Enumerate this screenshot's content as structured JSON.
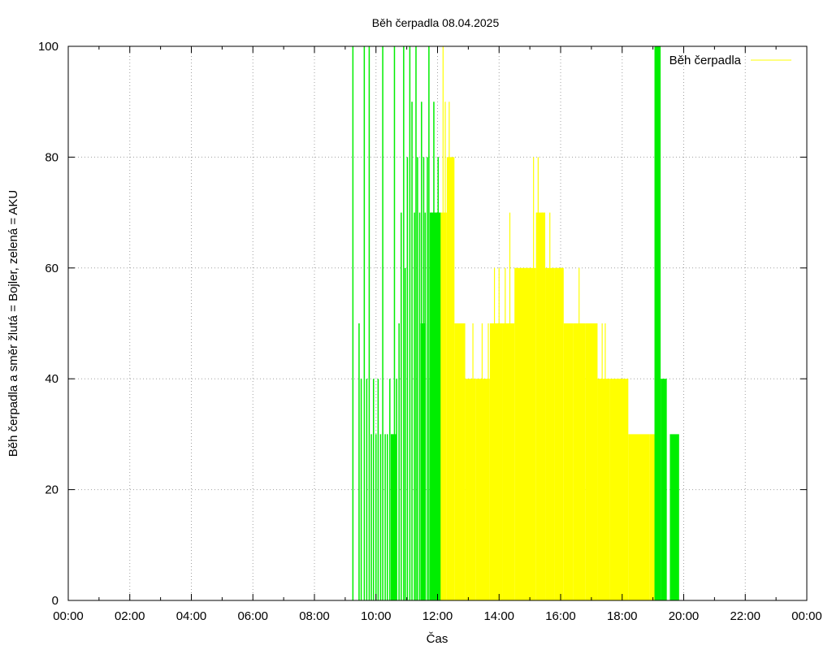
{
  "chart_data": {
    "type": "area",
    "title": "Běh čerpadla 08.04.2025",
    "xlabel": "Čas",
    "ylabel": "Běh čerpadla a směr žlutá = Bojler, zelená = AKU",
    "xlim": [
      0,
      24
    ],
    "ylim": [
      0,
      100
    ],
    "x_ticks": [
      0,
      2,
      4,
      6,
      8,
      10,
      12,
      14,
      16,
      18,
      20,
      22,
      24
    ],
    "x_tick_labels": [
      "00:00",
      "02:00",
      "04:00",
      "06:00",
      "08:00",
      "10:00",
      "12:00",
      "14:00",
      "16:00",
      "18:00",
      "20:00",
      "22:00",
      "00:00"
    ],
    "y_ticks": [
      0,
      20,
      40,
      60,
      80,
      100
    ],
    "y_tick_labels": [
      "0",
      "20",
      "40",
      "60",
      "80",
      "100"
    ],
    "grid": true,
    "legend_position": "top-right",
    "legend": [
      {
        "label": "Běh čerpadla",
        "color": "#ffff00"
      }
    ],
    "series": [
      {
        "name": "Běh čerpadla",
        "color": "#00ee00",
        "style": "impulses",
        "x": [
          9.25,
          9.45,
          9.52,
          9.62,
          9.7,
          9.78,
          9.85,
          9.92,
          10.0,
          10.07,
          10.15,
          10.22,
          10.3,
          10.37,
          10.45,
          10.52,
          10.6,
          10.67,
          10.75,
          10.82,
          10.9,
          10.95,
          11.02,
          11.1,
          11.17,
          11.25,
          11.3,
          11.35,
          11.42,
          11.48,
          11.55,
          11.6,
          11.67,
          11.72,
          11.8,
          11.88,
          11.95,
          12.02
        ],
        "y": [
          100,
          50,
          40,
          100,
          40,
          100,
          30,
          40,
          30,
          40,
          30,
          100,
          30,
          30,
          40,
          30,
          100,
          40,
          50,
          70,
          100,
          60,
          80,
          100,
          90,
          70,
          100,
          80,
          70,
          90,
          80,
          70,
          80,
          100,
          70,
          90,
          70,
          80
        ],
        "bands": [
          {
            "x_start": 10.48,
            "x_end": 10.68,
            "value": 30
          },
          {
            "x_start": 11.45,
            "x_end": 11.62,
            "value": 50
          },
          {
            "x_start": 11.75,
            "x_end": 12.1,
            "value": 70
          },
          {
            "x_start": 19.05,
            "x_end": 19.25,
            "value": 100
          },
          {
            "x_start": 19.25,
            "x_end": 19.45,
            "value": 40
          },
          {
            "x_start": 19.55,
            "x_end": 19.85,
            "value": 30
          }
        ]
      },
      {
        "name": "Běh čerpadla",
        "color": "#ffff00",
        "style": "fillsteps",
        "x": [
          12.07,
          12.3,
          12.55,
          12.9,
          13.25,
          13.7,
          14.1,
          14.5,
          14.9,
          15.2,
          15.5,
          15.8,
          16.1,
          16.4,
          16.8,
          17.2,
          17.6,
          18.2,
          18.9,
          19.05
        ],
        "y": [
          70,
          80,
          50,
          40,
          40,
          50,
          50,
          60,
          60,
          70,
          60,
          60,
          50,
          50,
          50,
          40,
          40,
          30,
          30,
          0
        ],
        "spikes": {
          "x": [
            12.18,
            12.25,
            12.38,
            12.47,
            12.6,
            12.75,
            12.85,
            13.0,
            13.15,
            13.3,
            13.45,
            13.55,
            13.65,
            13.85,
            14.0,
            14.2,
            14.35,
            14.55,
            14.7,
            14.9,
            15.12,
            15.27,
            15.4,
            15.65,
            15.9,
            16.05,
            16.25,
            16.45,
            16.6,
            16.75,
            16.95,
            17.1,
            17.35,
            17.45
          ],
          "y": [
            100,
            90,
            90,
            70,
            50,
            50,
            40,
            30,
            50,
            30,
            50,
            40,
            50,
            60,
            60,
            60,
            70,
            60,
            60,
            60,
            80,
            80,
            70,
            70,
            60,
            60,
            50,
            50,
            60,
            40,
            50,
            50,
            50,
            50
          ]
        }
      }
    ]
  }
}
